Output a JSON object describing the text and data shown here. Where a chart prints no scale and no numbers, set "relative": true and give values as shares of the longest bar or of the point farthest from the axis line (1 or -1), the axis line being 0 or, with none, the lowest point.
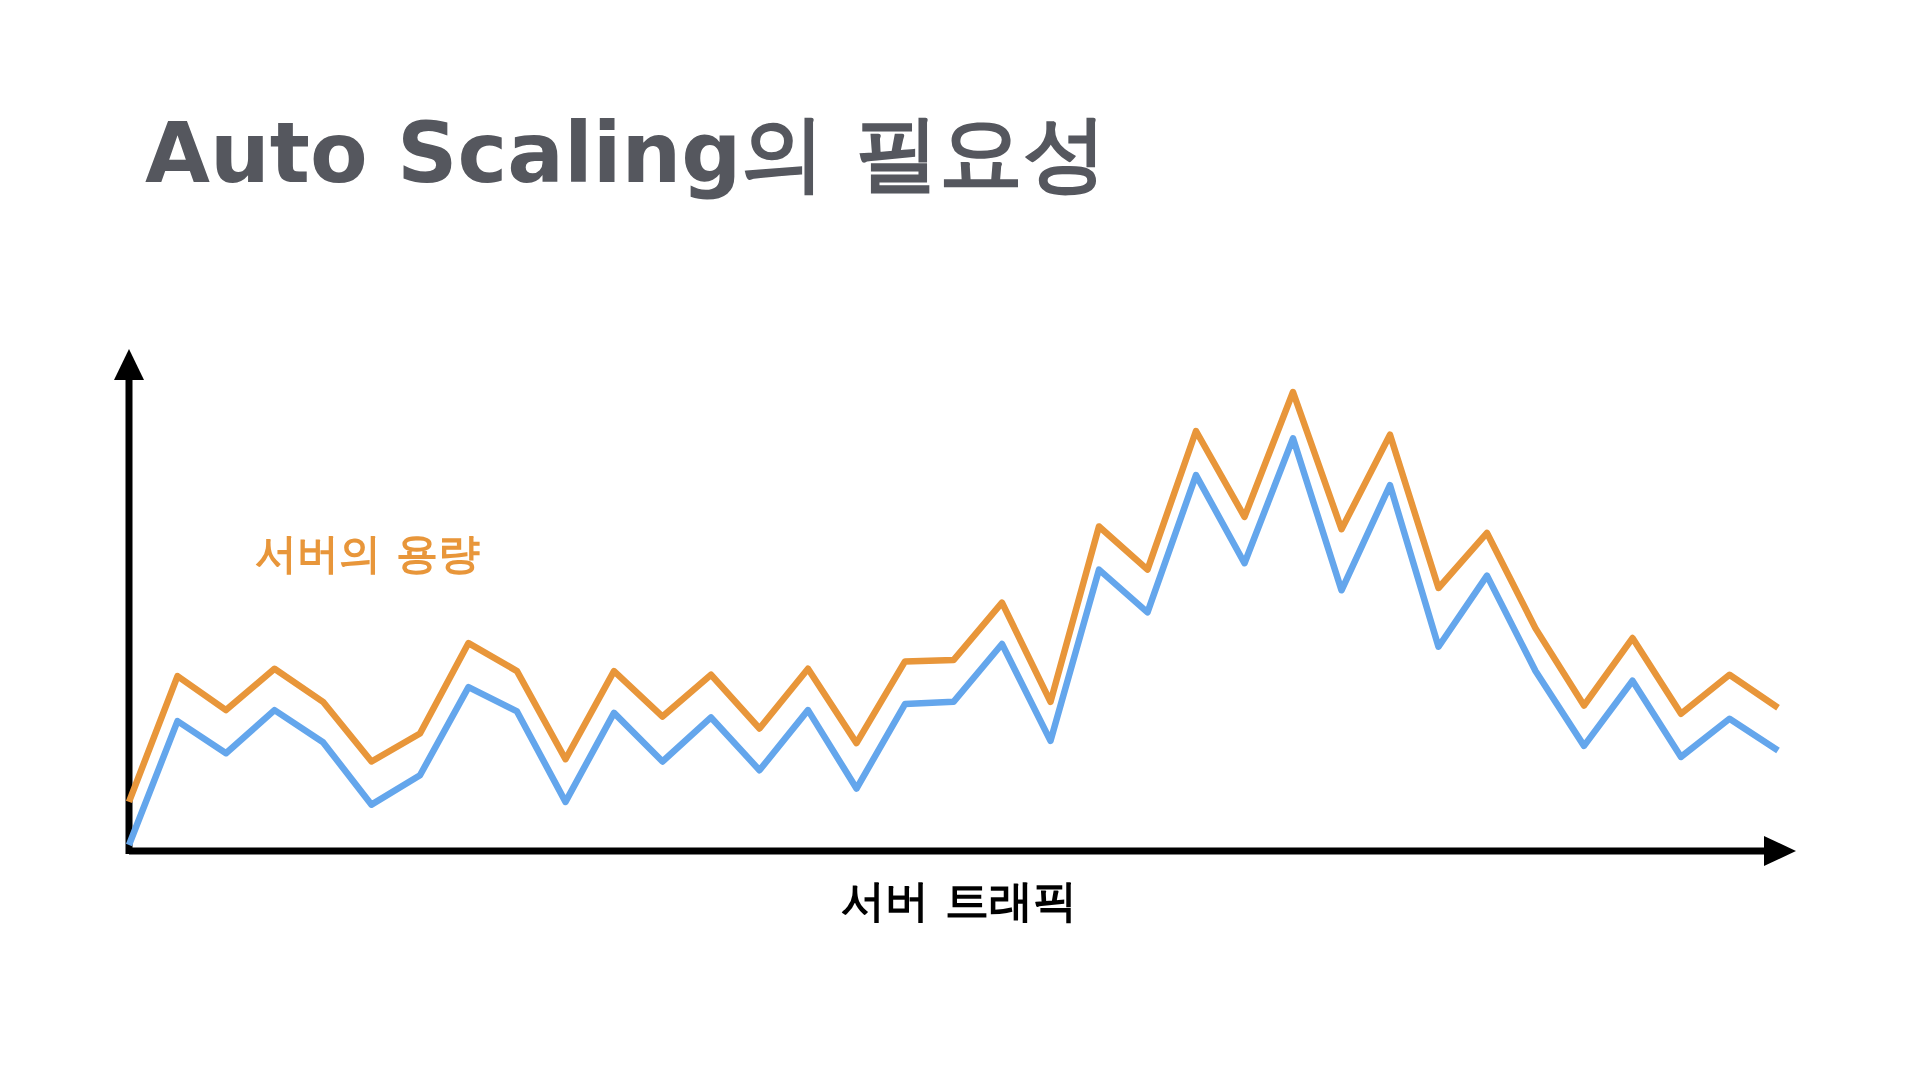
{
  "chart_data": {
    "type": "line",
    "title": "Auto Scaling의 필요성",
    "xlabel": "서버 트래픽",
    "relative": true,
    "categories": [
      null,
      null,
      null,
      null,
      null,
      null,
      null,
      null,
      null,
      null,
      null,
      null,
      null,
      null,
      null,
      null,
      null,
      null,
      null,
      null,
      null,
      null,
      null,
      null,
      null,
      null,
      null,
      null,
      null,
      null,
      null,
      null,
      null,
      null,
      null
    ],
    "series": [
      {
        "name": "서버의 용량",
        "color": "#e8963a",
        "values": [
          0.107,
          0.381,
          0.307,
          0.397,
          0.325,
          0.195,
          0.256,
          0.453,
          0.392,
          0.2,
          0.392,
          0.293,
          0.384,
          0.267,
          0.397,
          0.235,
          0.413,
          0.416,
          0.541,
          0.325,
          0.707,
          0.613,
          0.915,
          0.728,
          1,
          0.701,
          0.907,
          0.573,
          0.693,
          0.485,
          0.317,
          0.464,
          0.299,
          0.384,
          0.312
        ]
      },
      {
        "color": "#64a6ec",
        "values": [
          0.013,
          0.283,
          0.213,
          0.307,
          0.237,
          0.101,
          0.165,
          0.357,
          0.304,
          0.107,
          0.301,
          0.195,
          0.291,
          0.176,
          0.307,
          0.136,
          0.32,
          0.325,
          0.451,
          0.24,
          0.613,
          0.52,
          0.819,
          0.627,
          0.899,
          0.568,
          0.797,
          0.445,
          0.6,
          0.392,
          0.229,
          0.371,
          0.205,
          0.288,
          0.219
        ]
      }
    ]
  }
}
